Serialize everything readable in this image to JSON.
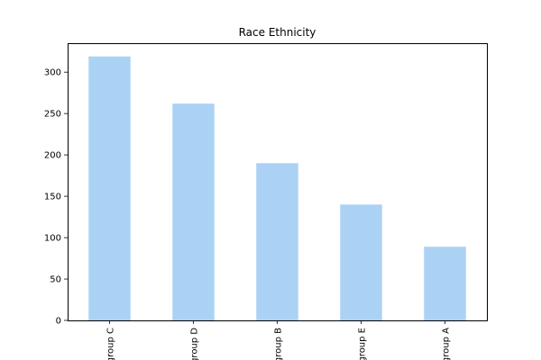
{
  "chart_data": {
    "type": "bar",
    "title": "Race Ethnicity",
    "xlabel": "",
    "ylabel": "",
    "categories": [
      "group C",
      "group D",
      "group B",
      "group E",
      "group A"
    ],
    "values": [
      319,
      262,
      190,
      140,
      89
    ],
    "ylim": [
      0,
      335
    ],
    "yticks": [
      0,
      50,
      100,
      150,
      200,
      250,
      300
    ],
    "grid": false,
    "legend": "none",
    "bar_color": "#abd2f5"
  }
}
